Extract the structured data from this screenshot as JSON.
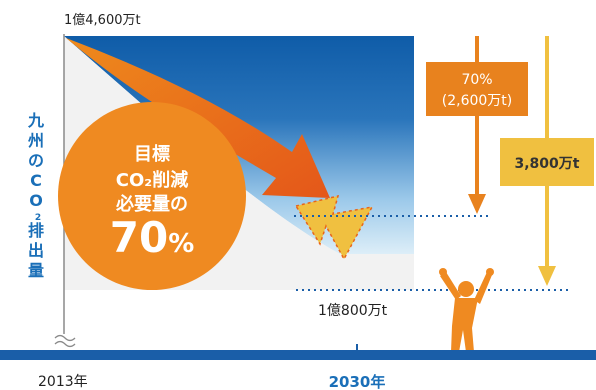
{
  "chart_data": {
    "type": "area",
    "x": [
      "2013年",
      "2030年"
    ],
    "start_label": "1億4,600万t",
    "end_label": "1億800万t",
    "ylabel_chars": [
      "九",
      "州",
      "の",
      "C",
      "O",
      "2",
      "排",
      "出",
      "量"
    ],
    "target_circle": {
      "line1": "目標",
      "line2": "CO₂削減",
      "line3": "必要量の",
      "value_num": "70",
      "value_unit": "%"
    },
    "reduction_box": {
      "line1": "70%",
      "line2": "(2,600万t)",
      "color": "#e8821e"
    },
    "total_box": {
      "label": "3,800万t",
      "color": "#f0c040"
    }
  },
  "colors": {
    "area_top": "#0f5ca8",
    "area_bottom": "#f0f0f0",
    "arrow": "#e8641a",
    "target": "#f0c040",
    "circle": "#ef8a21",
    "baseline": "#1a5ea8",
    "ylabel": "#1a6fb8",
    "dotted": "#1a5ea8"
  }
}
